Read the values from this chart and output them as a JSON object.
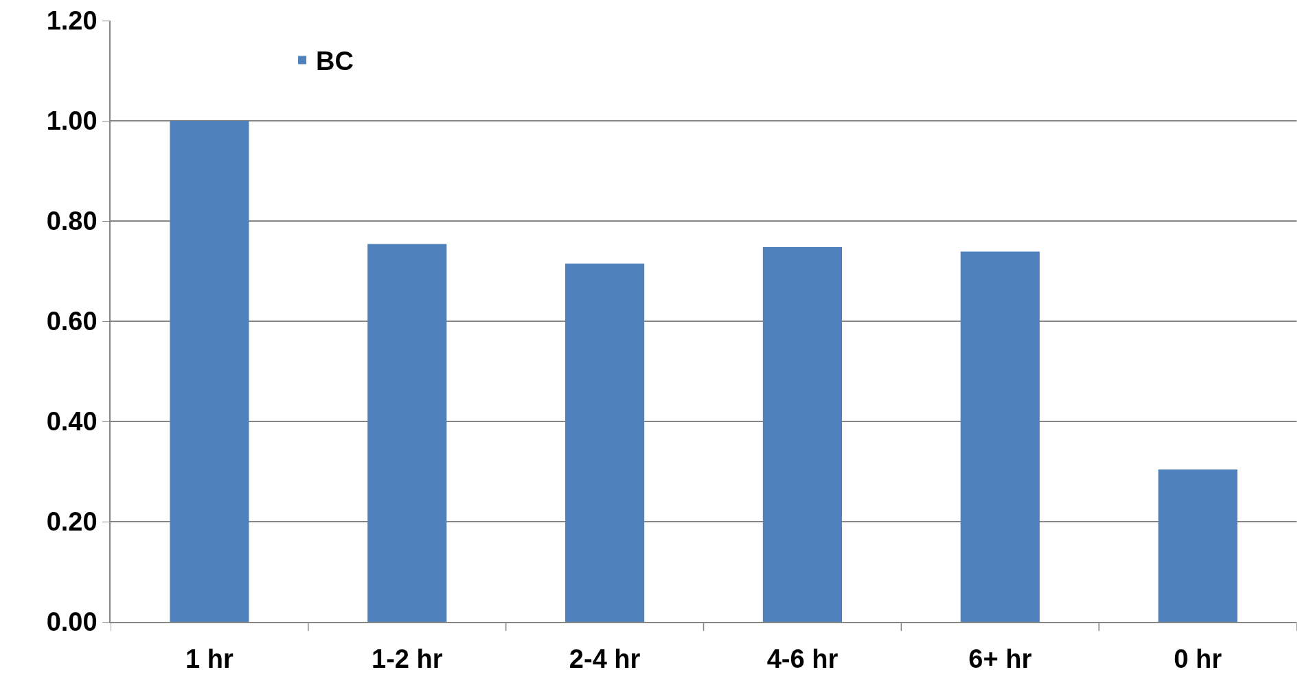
{
  "chart_data": {
    "type": "bar",
    "categories": [
      "1 hr",
      "1-2 hr",
      "2-4 hr",
      "4-6 hr",
      "6+ hr",
      "0 hr"
    ],
    "series": [
      {
        "name": "BC",
        "color": "#4f81bd",
        "values": [
          1.0,
          0.754,
          0.715,
          0.748,
          0.739,
          0.304
        ]
      }
    ],
    "ylim": [
      0,
      1.2
    ],
    "yticks": [
      {
        "value": 0,
        "label": "0.00"
      },
      {
        "value": 0.2,
        "label": "0.20"
      },
      {
        "value": 0.4,
        "label": "0.40"
      },
      {
        "value": 0.6,
        "label": "0.60"
      },
      {
        "value": 0.8,
        "label": "0.80"
      },
      {
        "value": 1,
        "label": "1.00"
      },
      {
        "value": 1.2,
        "label": "1.20"
      }
    ],
    "grid": "y",
    "legend": "top left"
  }
}
